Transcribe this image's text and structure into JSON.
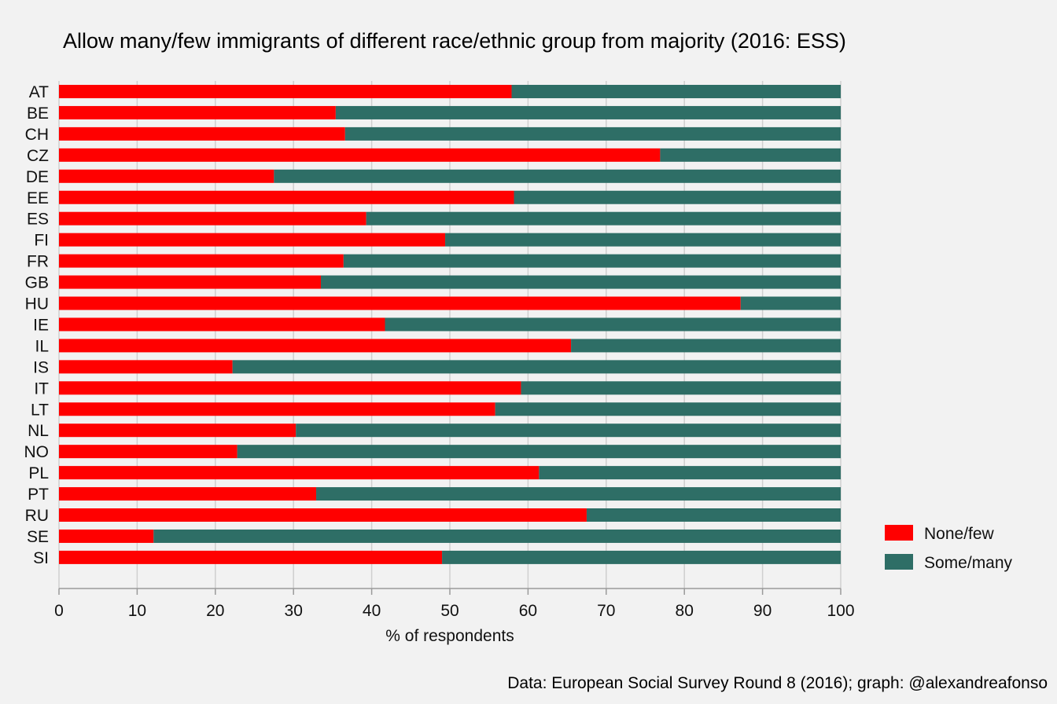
{
  "chart_data": {
    "type": "bar",
    "orientation": "horizontal",
    "stacked": true,
    "title": "Allow many/few immigrants of different race/ethnic group from majority (2016: ESS)",
    "xlabel": "% of respondents",
    "ylabel": "",
    "xlim": [
      0,
      100
    ],
    "xticks": [
      "0",
      "10",
      "20",
      "30",
      "40",
      "50",
      "60",
      "70",
      "80",
      "90",
      "100"
    ],
    "grid": true,
    "legend_position": "right",
    "categories": [
      "AT",
      "BE",
      "CH",
      "CZ",
      "DE",
      "EE",
      "ES",
      "FI",
      "FR",
      "GB",
      "HU",
      "IE",
      "IL",
      "IS",
      "IT",
      "LT",
      "NL",
      "NO",
      "PL",
      "PT",
      "RU",
      "SE",
      "SI"
    ],
    "series": [
      {
        "name": "None/few",
        "color": "#ff0000",
        "values": [
          57.9,
          35.4,
          36.6,
          76.9,
          27.5,
          58.2,
          39.3,
          49.4,
          36.4,
          33.5,
          87.2,
          41.7,
          65.5,
          22.2,
          59.1,
          55.8,
          30.3,
          22.8,
          61.4,
          32.9,
          67.5,
          12.1,
          49.0
        ]
      },
      {
        "name": "Some/many",
        "color": "#2e6e66",
        "values": [
          42.1,
          64.6,
          63.4,
          23.1,
          72.5,
          41.8,
          60.7,
          50.6,
          63.6,
          66.5,
          12.8,
          58.3,
          34.5,
          77.8,
          40.9,
          44.2,
          69.7,
          77.2,
          38.6,
          67.1,
          32.5,
          87.9,
          51.0
        ]
      }
    ],
    "caption": "Data: European Social Survey Round 8 (2016); graph: @alexandreafonso"
  }
}
